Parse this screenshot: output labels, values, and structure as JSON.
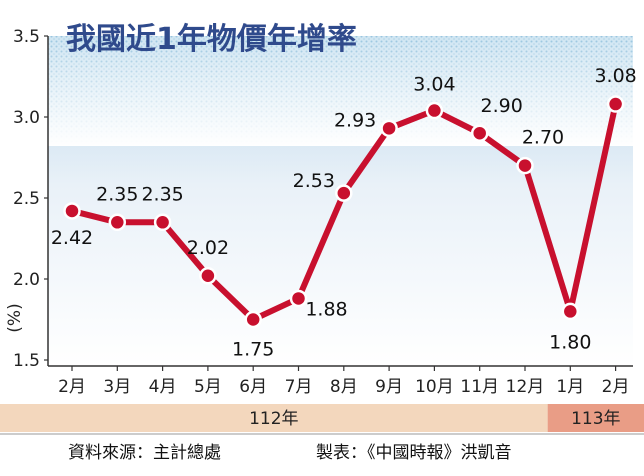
{
  "chart_data": {
    "type": "line",
    "title": "我國近1年物價年增率",
    "ylabel": "(%)",
    "ylim": [
      1.5,
      3.5
    ],
    "yticks": [
      "1.5",
      "2.0",
      "2.5",
      "3.0",
      "3.5"
    ],
    "categories": [
      "2月",
      "3月",
      "4月",
      "5月",
      "6月",
      "7月",
      "8月",
      "9月",
      "10月",
      "11月",
      "12月",
      "1月",
      "2月"
    ],
    "values": [
      2.42,
      2.35,
      2.35,
      2.02,
      1.75,
      1.88,
      2.53,
      2.93,
      3.04,
      2.9,
      2.7,
      1.8,
      3.08
    ],
    "data_labels": [
      "2.42",
      "2.35",
      "2.35",
      "2.02",
      "1.75",
      "1.88",
      "2.53",
      "2.93",
      "3.04",
      "2.90",
      "2.70",
      "1.80",
      "3.08"
    ],
    "year_groups": [
      {
        "label": "112年",
        "count": 11
      },
      {
        "label": "113年",
        "count": 2
      }
    ],
    "grid": false,
    "colors": {
      "line": "#c8102e",
      "marker_fill": "#c8102e",
      "marker_stroke": "#ffffff",
      "title": "#2f4a8c",
      "band_112": "#f3d7bd",
      "band_113": "#e99d86",
      "bg_top": "#c7e0ee"
    }
  },
  "footer": {
    "source": "資料來源：主計總處",
    "credit": "製表：《中國時報》洪凱音"
  }
}
